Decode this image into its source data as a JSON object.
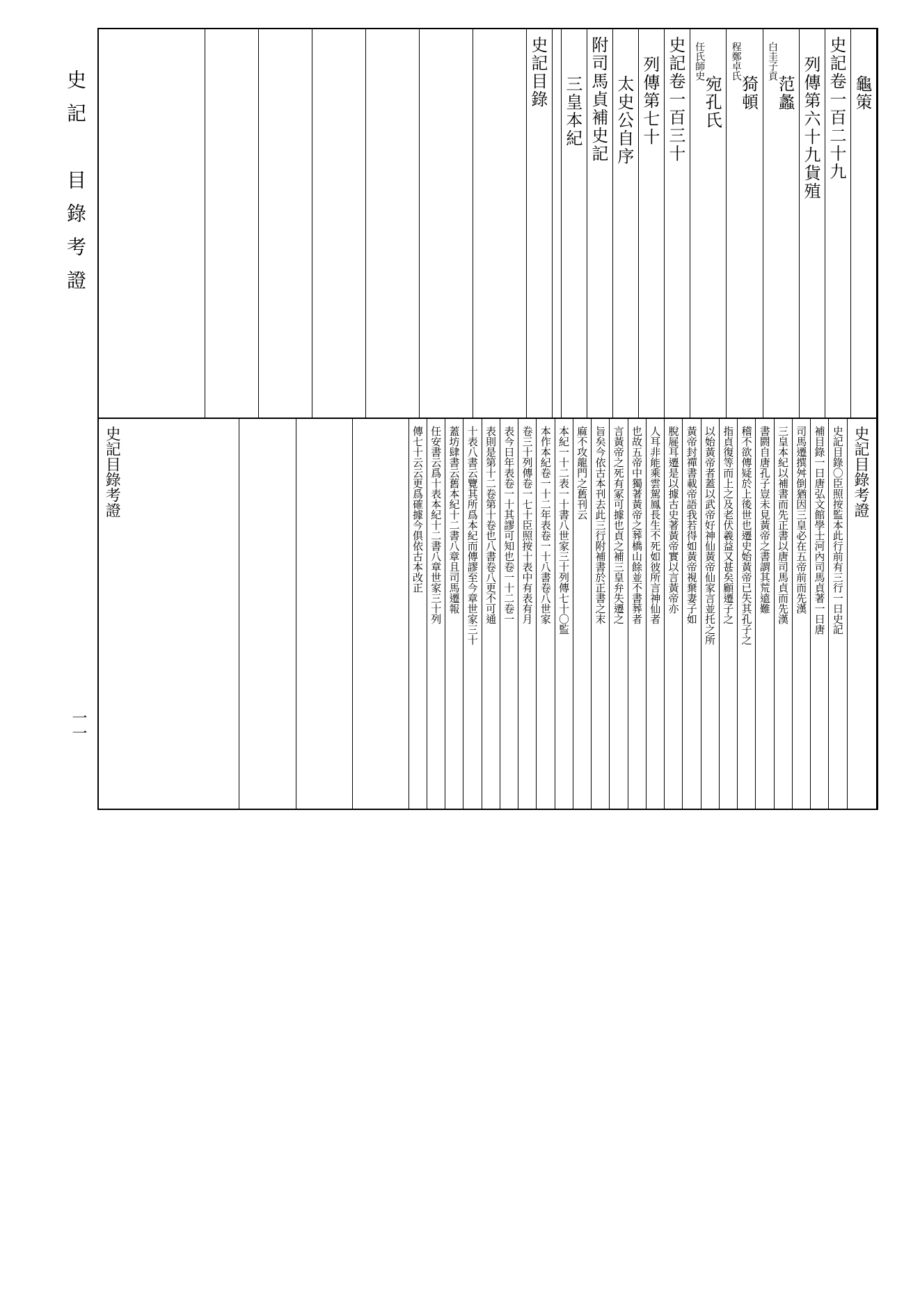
{
  "margin": {
    "title": "史記　目錄考證",
    "pagenum": "一一"
  },
  "top": {
    "columns": [
      {
        "main": "龜策",
        "indent": 2
      },
      {
        "main": "史記卷一百二十九",
        "indent": 0
      },
      {
        "main": "列傳第六十九貨殖",
        "indent": 1
      },
      {
        "main": "范蠡",
        "sub1": "子貢",
        "sub2": "白圭",
        "indent": 2
      },
      {
        "main": "猗頓",
        "sub1": "卓氏",
        "sub2": "程鄭",
        "indent": 2
      },
      {
        "main": "宛孔氏",
        "sub1": "師史",
        "sub2": "任氏",
        "indent": 2
      },
      {
        "main": "史記卷一百三十",
        "indent": 0
      },
      {
        "main": "列傳第七十",
        "indent": 1
      },
      {
        "main": "太史公自序",
        "indent": 2
      },
      {
        "main": "附司馬貞補史記",
        "indent": 0
      },
      {
        "main": "三皇本紀",
        "indent": 2
      },
      {
        "main": "",
        "indent": 0
      },
      {
        "main": "史記目錄",
        "indent": 0
      }
    ],
    "empty_count": 8
  },
  "bottom": {
    "columns": [
      {
        "text": "史記目錄考證",
        "type": "title"
      },
      {
        "text": "史記目錄○臣照按監本此行前有三行一曰史記"
      },
      {
        "text": "補目錄一曰唐弘文館學士河內司馬貞著一曰唐"
      },
      {
        "text": "司馬遷撰舛倒猶因三皇必在五帝前而先漢"
      },
      {
        "text": "三皇本紀以補書而先正書以唐司馬貞而先漢"
      },
      {
        "text": "書閼自唐孔子豈未見黃帝之書謂其荒遠難"
      },
      {
        "text": "稽不欲傳疑於上後世也遷史始黃帝已失其孔子之"
      },
      {
        "text": "指貞復等而上之及老伏羲益又甚矣顧遷子之"
      },
      {
        "text": "以始黃帝者蓋以武帝好神仙黃帝仙家言並托之所"
      },
      {
        "text": "黃帝封禪書載帝語我若得如黃帝視棄妻子如"
      },
      {
        "text": "脫屣耳遷是以據古史著黃帝實以言黃帝亦"
      },
      {
        "text": "人耳非能乘雲駕鳳長生不死如彼所言神仙者"
      },
      {
        "text": "也故五帝中獨著黃帝之葬橋山餘並不書葬者"
      },
      {
        "text": "言黃帝之死有冢可據也貞之補三皇弁失遷之"
      },
      {
        "text": "旨矣今依古本刊去此三行附補書於正書之末"
      },
      {
        "text": "麻不攻龍門之舊刊云"
      },
      {
        "text": "本紀一十二表一十書八世家三十列傳七十○監"
      },
      {
        "text": "本作本紀卷一十二年表卷一十八書卷八世家"
      },
      {
        "text": "卷三十列傳卷一七十臣照按十表中有表有月"
      },
      {
        "text": "表今曰年表卷一十其謬可知也卷一十二卷一"
      },
      {
        "text": "表則是第十二卷第十卷也八書卷八更不可通"
      },
      {
        "text": "十表八書云覽其所爲本紀而傳謬至今章世家三十"
      },
      {
        "text": "蓋坊肆書云舊本紀十二書八章且司馬遷報"
      },
      {
        "text": "任安書云爲十表本紀十二書八章世家三十列"
      },
      {
        "text": "傳七十云云更爲確據今俱依古本改正"
      },
      {
        "text": "",
        "type": "spacer"
      },
      {
        "text": "史記目錄考證",
        "type": "title"
      }
    ],
    "empty_count": 5
  },
  "style": {
    "page_bg": "#ffffff",
    "border_color": "#000000",
    "border_width": 2,
    "col_border_width": 1,
    "top_fontsize": 24,
    "bottom_fontsize": 15,
    "bottom_title_fontsize": 22,
    "margin_title_fontsize": 28,
    "margin_pagenum_fontsize": 22,
    "small_line_fontsize": 14
  }
}
